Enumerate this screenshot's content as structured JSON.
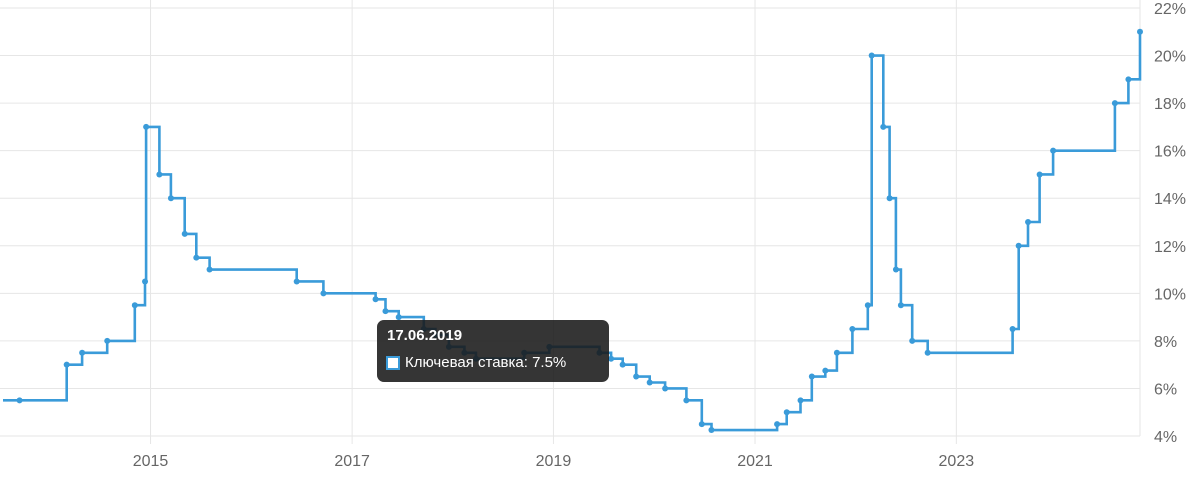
{
  "chart_data": {
    "type": "line",
    "step": true,
    "color": "#3a9bd9",
    "x_ticks": [
      "2015",
      "2017",
      "2019",
      "2021",
      "2023"
    ],
    "y_ticks": [
      "4%",
      "6%",
      "8%",
      "10%",
      "12%",
      "14%",
      "16%",
      "18%",
      "20%",
      "22%"
    ],
    "ylim": [
      4,
      22
    ],
    "xlim": [
      "2013-07-15",
      "2024-10-28"
    ],
    "y_axis_position": "right",
    "grid": true,
    "series": [
      {
        "name": "Ключевая ставка",
        "points": [
          [
            "2013-09-13",
            5.5
          ],
          [
            "2014-03-03",
            7.0
          ],
          [
            "2014-04-28",
            7.5
          ],
          [
            "2014-07-28",
            8.0
          ],
          [
            "2014-11-05",
            9.5
          ],
          [
            "2014-12-12",
            10.5
          ],
          [
            "2014-12-16",
            17.0
          ],
          [
            "2015-02-02",
            15.0
          ],
          [
            "2015-03-16",
            14.0
          ],
          [
            "2015-05-05",
            12.5
          ],
          [
            "2015-06-16",
            11.5
          ],
          [
            "2015-08-03",
            11.0
          ],
          [
            "2016-06-14",
            10.5
          ],
          [
            "2016-09-19",
            10.0
          ],
          [
            "2017-03-27",
            9.75
          ],
          [
            "2017-05-02",
            9.25
          ],
          [
            "2017-06-19",
            9.0
          ],
          [
            "2017-09-18",
            8.5
          ],
          [
            "2017-10-30",
            8.25
          ],
          [
            "2017-12-18",
            7.75
          ],
          [
            "2018-02-12",
            7.5
          ],
          [
            "2018-03-26",
            7.25
          ],
          [
            "2018-09-17",
            7.5
          ],
          [
            "2018-12-17",
            7.75
          ],
          [
            "2019-06-17",
            7.5
          ],
          [
            "2019-07-29",
            7.25
          ],
          [
            "2019-09-09",
            7.0
          ],
          [
            "2019-10-28",
            6.5
          ],
          [
            "2019-12-16",
            6.25
          ],
          [
            "2020-02-10",
            6.0
          ],
          [
            "2020-04-27",
            5.5
          ],
          [
            "2020-06-22",
            4.5
          ],
          [
            "2020-07-27",
            4.25
          ],
          [
            "2021-03-22",
            4.5
          ],
          [
            "2021-04-26",
            5.0
          ],
          [
            "2021-06-15",
            5.5
          ],
          [
            "2021-07-26",
            6.5
          ],
          [
            "2021-09-13",
            6.75
          ],
          [
            "2021-10-25",
            7.5
          ],
          [
            "2021-12-20",
            8.5
          ],
          [
            "2022-02-14",
            9.5
          ],
          [
            "2022-02-28",
            20.0
          ],
          [
            "2022-04-11",
            17.0
          ],
          [
            "2022-05-04",
            14.0
          ],
          [
            "2022-05-27",
            11.0
          ],
          [
            "2022-06-14",
            9.5
          ],
          [
            "2022-07-25",
            8.0
          ],
          [
            "2022-09-19",
            7.5
          ],
          [
            "2023-07-24",
            8.5
          ],
          [
            "2023-08-15",
            12.0
          ],
          [
            "2023-09-18",
            13.0
          ],
          [
            "2023-10-30",
            15.0
          ],
          [
            "2023-12-18",
            16.0
          ],
          [
            "2024-07-29",
            18.0
          ],
          [
            "2024-09-16",
            19.0
          ],
          [
            "2024-10-28",
            21.0
          ]
        ]
      }
    ],
    "tooltip": {
      "date": "17.06.2019",
      "label": "Ключевая ставка: 7.5%",
      "anchor_x": "2019-06-17",
      "anchor_y": 7.5
    }
  }
}
